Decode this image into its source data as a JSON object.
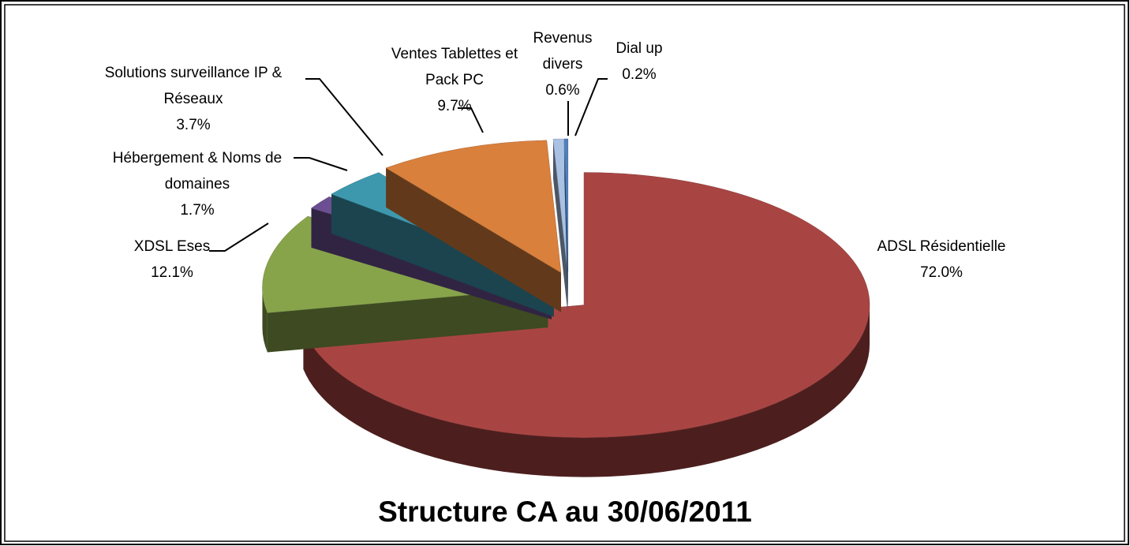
{
  "chart_data": {
    "type": "pie",
    "title": "Structure CA au 30/06/2011",
    "categories": [
      "ADSL Résidentielle",
      "XDSL Eses",
      "Hébergement & Noms de domaines",
      "Solutions surveillance IP & Réseaux",
      "Ventes Tablettes et Pack PC",
      "Revenus divers",
      "Dial up"
    ],
    "values": [
      72.0,
      12.1,
      1.7,
      3.7,
      9.7,
      0.6,
      0.2
    ],
    "value_labels": [
      "72.0%",
      "12.1%",
      "1.7%",
      "3.7%",
      "9.7%",
      "0.6%",
      "0.2%"
    ],
    "colors": [
      "#a84543",
      "#87a44b",
      "#6c4f92",
      "#3d98ae",
      "#d9803d",
      "#a9c1e2",
      "#4f80bf"
    ]
  }
}
